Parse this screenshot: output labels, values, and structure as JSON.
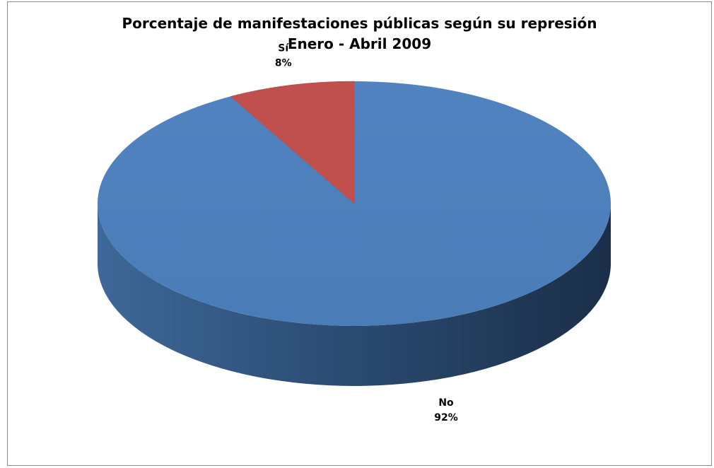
{
  "chart_data": {
    "type": "pie",
    "title": "Porcentaje de manifestaciones públicas  según su represión",
    "subtitle": "Enero - Abril 2009",
    "slices": [
      {
        "label": "No",
        "value": 92,
        "value_label": "92%",
        "color": "#4f81bd"
      },
      {
        "label": "Sí",
        "value": 8,
        "value_label": "8%",
        "color": "#c0504d"
      }
    ],
    "legend": "none",
    "style": "3d"
  }
}
